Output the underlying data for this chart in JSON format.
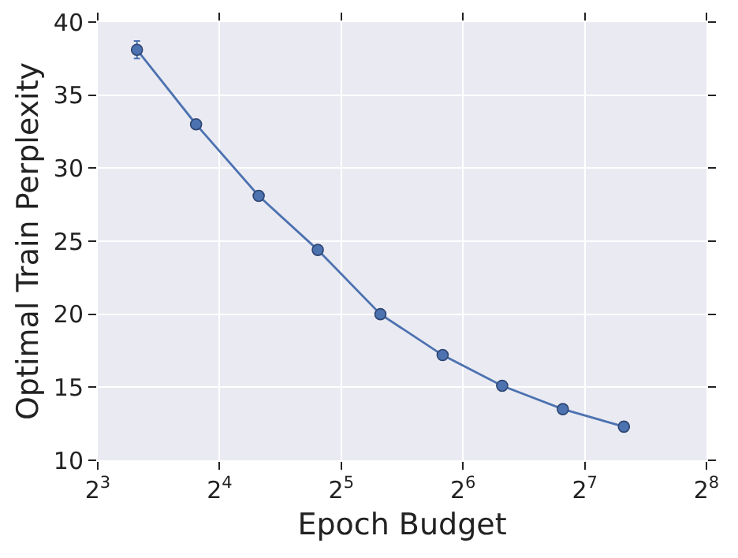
{
  "chart_data": {
    "type": "line",
    "xlabel": "Epoch Budget",
    "ylabel": "Optimal Train Perplexity",
    "x": [
      10,
      14,
      20,
      28,
      40,
      57,
      80,
      113,
      160
    ],
    "series": [
      {
        "color": "#4c72b0",
        "values": [
          38.1,
          33.0,
          28.1,
          24.4,
          20.0,
          17.2,
          15.1,
          13.5,
          12.3
        ],
        "errors": [
          0.6,
          null,
          null,
          null,
          null,
          null,
          null,
          null,
          null
        ]
      }
    ],
    "log": "x",
    "xlim": [
      8,
      256
    ],
    "xticks": [
      {
        "value": 8,
        "label": "2$^{3}$"
      },
      {
        "value": 16,
        "label": "2$^{4}$"
      },
      {
        "value": 32,
        "label": "2$^{5}$"
      },
      {
        "value": 64,
        "label": "2$^{6}$"
      },
      {
        "value": 128,
        "label": "2$^{7}$"
      },
      {
        "value": 256,
        "label": "2$^{8}$"
      }
    ],
    "ylim": [
      10,
      40
    ],
    "yticks": [
      10,
      15,
      20,
      25,
      30,
      35,
      40
    ],
    "grid": true,
    "marker": "circle",
    "line_style": "solid"
  }
}
